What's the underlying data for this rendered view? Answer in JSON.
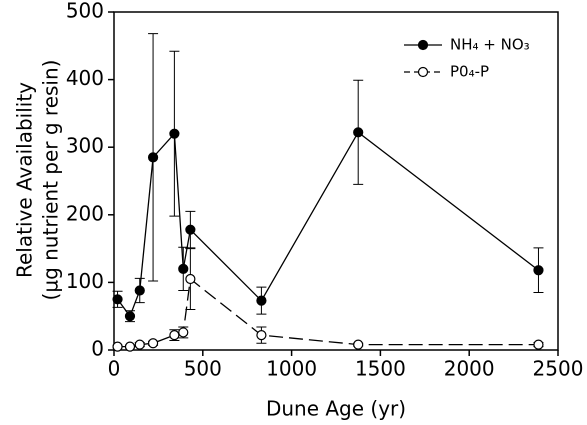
{
  "chart_data": {
    "type": "line",
    "xlabel": "Dune Age (yr)",
    "ylabel": [
      "Relative Availability",
      "(µg nutrient per g resin)"
    ],
    "xlim": [
      0,
      2500
    ],
    "xticks": [
      0,
      500,
      1000,
      1500,
      2000,
      2500
    ],
    "ylim": [
      0,
      500
    ],
    "yticks": [
      0,
      100,
      200,
      300,
      400,
      500
    ],
    "legend": "upper right",
    "series": [
      {
        "name": "NH₄ + NO₃",
        "color": "#000000",
        "marker": "filled",
        "dash": false,
        "x": [
          20,
          90,
          145,
          220,
          340,
          390,
          430,
          830,
          1375,
          2390
        ],
        "values": [
          75,
          50,
          88,
          285,
          320,
          120,
          178,
          73,
          322,
          118
        ],
        "errors": [
          12,
          8,
          18,
          183,
          122,
          32,
          27,
          20,
          77,
          33
        ]
      },
      {
        "name": "P0₄-P",
        "color": "#000000",
        "marker": "open",
        "dash": true,
        "x": [
          20,
          90,
          145,
          220,
          340,
          390,
          430,
          830,
          1375,
          2390
        ],
        "values": [
          5,
          5,
          8,
          10,
          22,
          26,
          105,
          22,
          8,
          8
        ],
        "errors": [
          2,
          2,
          3,
          3,
          8,
          8,
          45,
          12,
          2,
          3
        ]
      }
    ]
  }
}
